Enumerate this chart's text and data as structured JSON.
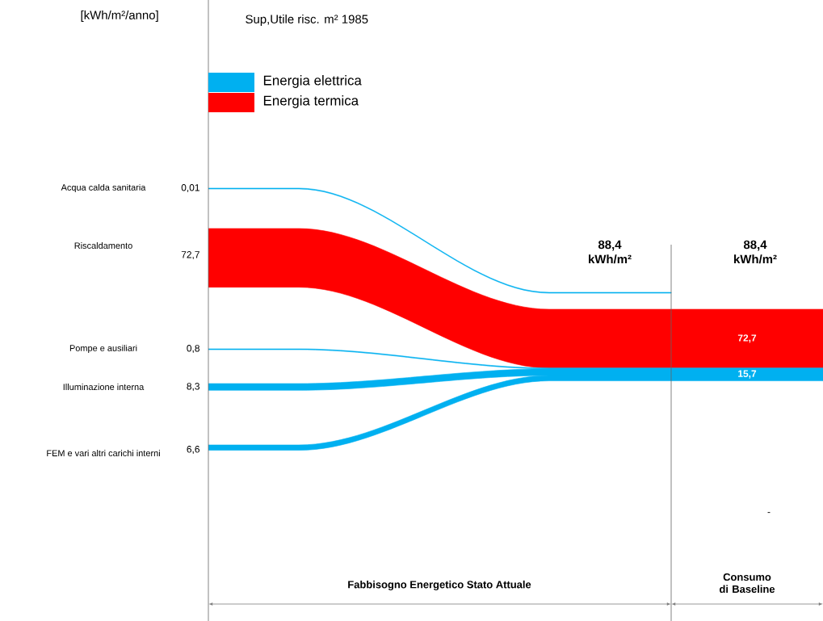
{
  "chart_data": {
    "type": "other",
    "title": "Sup,Utile risc. m² 1985",
    "ylabel": "[kWh/m²/anno]",
    "categories": [
      "Acqua calda sanitaria",
      "Riscaldamento",
      "Pompe e ausiliari",
      "Illuminazione interna",
      "FEM e vari altri carichi interni"
    ],
    "series": [
      {
        "color": "#00b0f0",
        "values": [
          0.01,
          null,
          null,
          null,
          null
        ],
        "value_labels": [
          "0,01",
          null,
          null,
          null,
          null
        ]
      },
      {
        "name": "Energia elettrica",
        "color": "#00b0f0",
        "values": [
          null,
          null,
          0.8,
          8.3,
          6.6
        ],
        "value_labels": [
          null,
          null,
          "0,8",
          "8,3",
          "6,6"
        ]
      },
      {
        "name": "Energia termica",
        "color": "#ff0000",
        "values": [
          null,
          72.7,
          null,
          null,
          null
        ],
        "value_labels": [
          null,
          "72,7",
          null,
          null,
          null
        ]
      }
    ],
    "totals": [
      "15,7",
      "72,7"
    ],
    "legend": "top left",
    "annotations": [
      "88,4 kWh/m²",
      "88,4 kWh/m²",
      "Fabbisogno Energetico Stato Attuale",
      "Consumo di Baseline",
      "-"
    ]
  }
}
